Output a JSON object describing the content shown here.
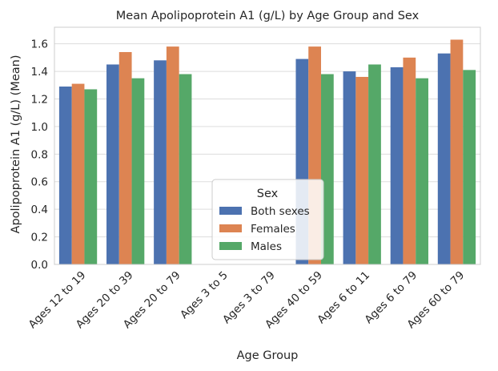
{
  "chart_data": {
    "type": "bar",
    "title": "Mean Apolipoprotein A1 (g/L) by Age Group and Sex",
    "xlabel": "Age Group",
    "ylabel": "Apolipoprotein A1 (g/L) (Mean)",
    "ylim": [
      0,
      1.72
    ],
    "yticks": [
      "0.0",
      "0.2",
      "0.4",
      "0.6",
      "0.8",
      "1.0",
      "1.2",
      "1.4",
      "1.6"
    ],
    "grid": "horizontal",
    "categories": [
      "Ages 12 to 19",
      "Ages 20 to 39",
      "Ages 20 to 79",
      "Ages 3 to 5",
      "Ages 3 to 79",
      "Ages 40 to 59",
      "Ages 6 to 11",
      "Ages 6 to 79",
      "Ages 60 to 79"
    ],
    "legend": {
      "title": "Sex",
      "placement": "bottom-center"
    },
    "series": [
      {
        "name": "Both sexes",
        "color": "#4c72b0",
        "values": [
          1.29,
          1.45,
          1.48,
          null,
          null,
          1.49,
          1.4,
          1.43,
          1.53
        ]
      },
      {
        "name": "Females",
        "color": "#dd8452",
        "values": [
          1.31,
          1.54,
          1.58,
          null,
          null,
          1.58,
          1.36,
          1.5,
          1.63
        ]
      },
      {
        "name": "Males",
        "color": "#55a868",
        "values": [
          1.27,
          1.35,
          1.38,
          null,
          null,
          1.38,
          1.45,
          1.35,
          1.41
        ]
      }
    ]
  }
}
